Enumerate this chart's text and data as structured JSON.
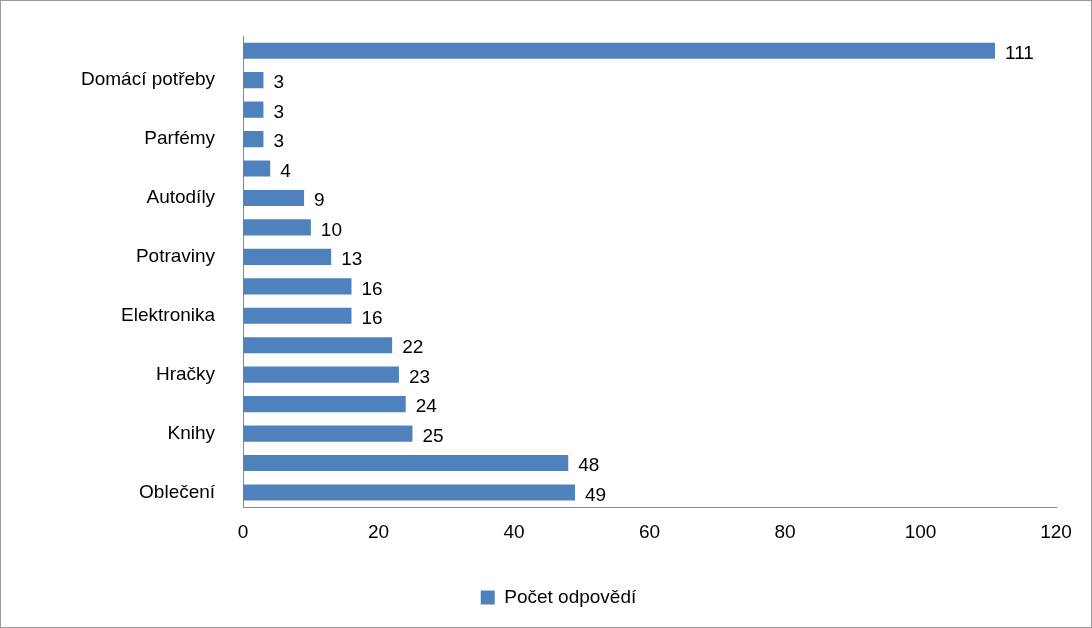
{
  "chart_data": {
    "type": "bar",
    "orientation": "horizontal",
    "categories": [
      null,
      "Domácí potřeby",
      null,
      "Parfémy",
      null,
      "Autodíly",
      null,
      "Potraviny",
      null,
      "Elektronika",
      null,
      "Hračky",
      null,
      "Knihy",
      null,
      "Oblečení"
    ],
    "series": [
      {
        "name": "Počet odpovědí",
        "color": "#4f81bd",
        "values": [
          111,
          3,
          3,
          3,
          4,
          9,
          10,
          13,
          16,
          16,
          22,
          23,
          24,
          25,
          48,
          49
        ]
      }
    ],
    "xlim": [
      0,
      120
    ],
    "xticks": [
      0,
      20,
      40,
      60,
      80,
      100,
      120
    ],
    "grid": false,
    "legend": "bottom",
    "data_labels": true
  }
}
